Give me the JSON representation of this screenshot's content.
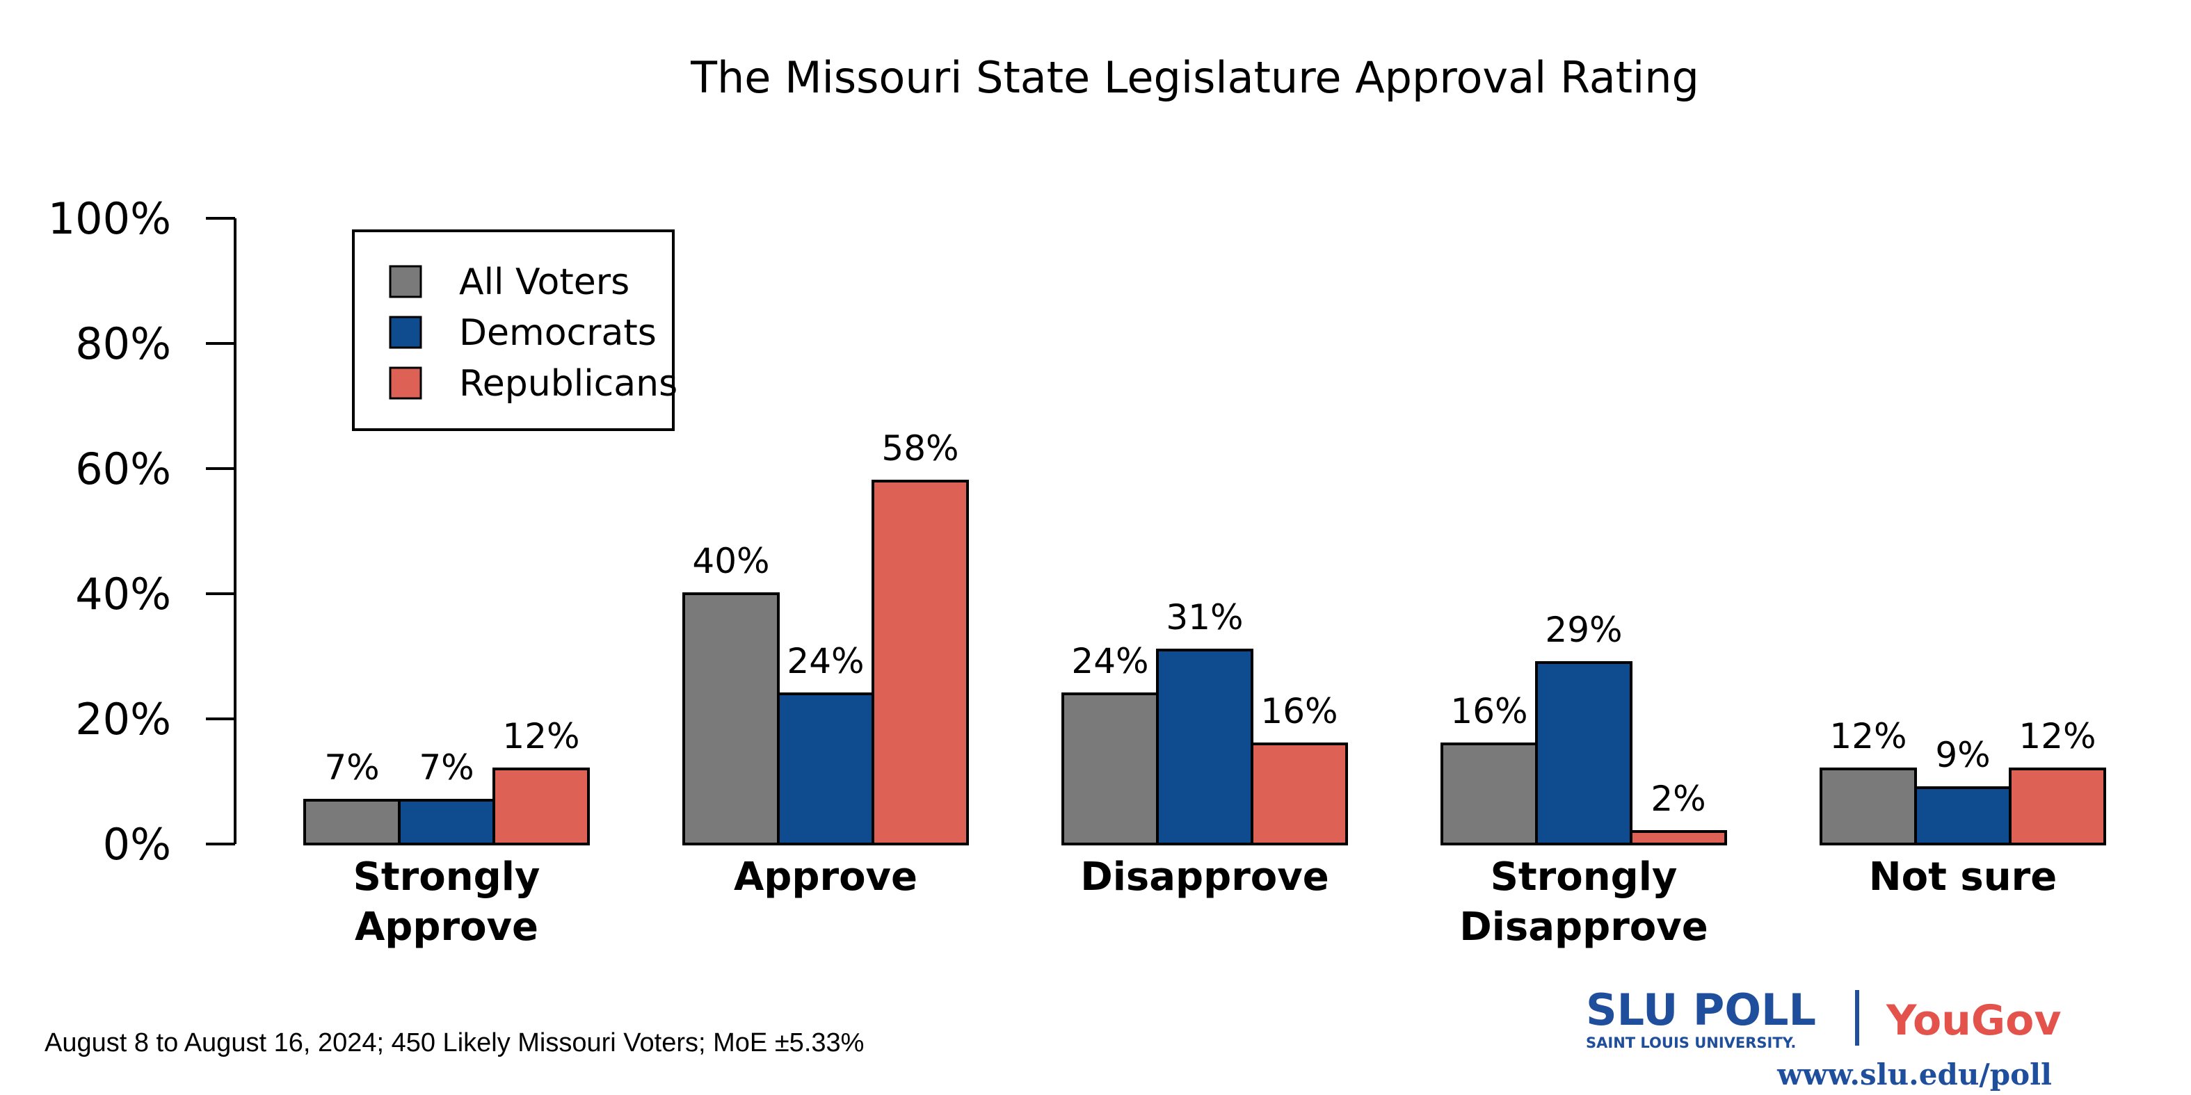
{
  "chart_data": {
    "type": "bar",
    "title": "The Missouri State Legislature Approval Rating",
    "categories": [
      [
        "Strongly",
        "Approve"
      ],
      [
        "Approve"
      ],
      [
        "Disapprove"
      ],
      [
        "Strongly",
        "Disapprove"
      ],
      [
        "Not sure"
      ]
    ],
    "series": [
      {
        "name": "All Voters",
        "color": "#7a7a7a",
        "values": [
          7,
          40,
          24,
          16,
          12
        ]
      },
      {
        "name": "Democrats",
        "color": "#0f4c8f",
        "values": [
          7,
          24,
          31,
          29,
          9
        ]
      },
      {
        "name": "Republicans",
        "color": "#de6155",
        "values": [
          12,
          58,
          16,
          2,
          12
        ]
      }
    ],
    "value_labels": [
      [
        "7%",
        "40%",
        "24%",
        "16%",
        "12%"
      ],
      [
        "7%",
        "24%",
        "31%",
        "29%",
        "9%"
      ],
      [
        "12%",
        "58%",
        "16%",
        "2%",
        "12%"
      ]
    ],
    "ylim": [
      0,
      100
    ],
    "yticks": [
      0,
      20,
      40,
      60,
      80,
      100
    ],
    "ytick_labels": [
      "0%",
      "20%",
      "40%",
      "60%",
      "80%",
      "100%"
    ],
    "legend_position": "top-left"
  },
  "footnote": "August 8 to August 16, 2024; 450 Likely Missouri Voters; MoE ±5.33%",
  "branding": {
    "slu_poll": "SLU POLL",
    "slu_sub": "SAINT LOUIS UNIVERSITY.",
    "yougov": "YouGov",
    "url": "www.slu.edu/poll"
  }
}
